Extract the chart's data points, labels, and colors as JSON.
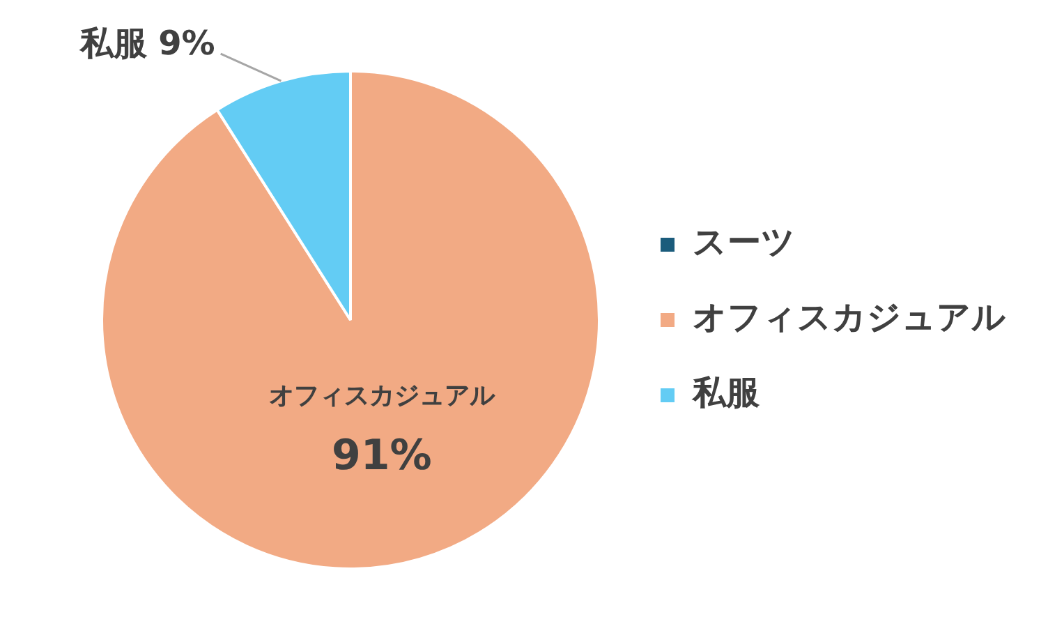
{
  "chart_data": {
    "type": "pie",
    "categories": [
      "スーツ",
      "オフィスカジュアル",
      "私服"
    ],
    "values": [
      0,
      91,
      9
    ],
    "colors": [
      "#1b5c7c",
      "#f2aa84",
      "#63ccf4"
    ],
    "legend": "right",
    "value_labels": [
      null,
      "91%",
      "9%"
    ]
  }
}
